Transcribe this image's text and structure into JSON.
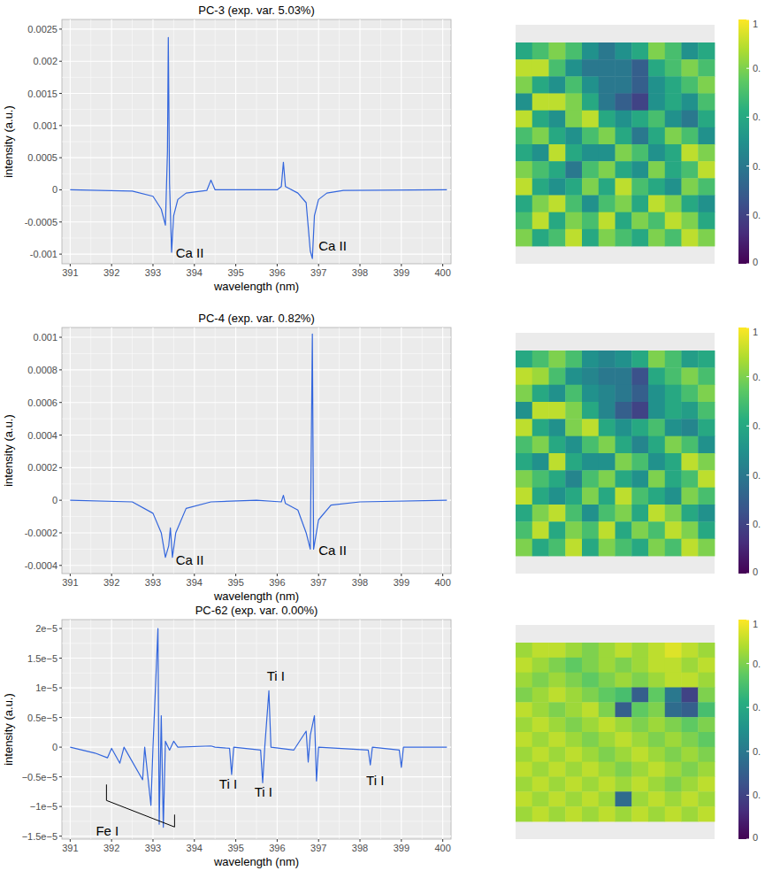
{
  "chart_data": [
    {
      "type": "line",
      "title": "PC-3 (exp. var. 5.03%)",
      "x_label": "wavelength (nm)",
      "y_label": "intensity (a.u.)",
      "color": "#3366dd",
      "grid": true,
      "xlim": [
        390.8,
        400.2
      ],
      "xticks": [
        391,
        392,
        393,
        394,
        395,
        396,
        397,
        398,
        399,
        400
      ],
      "ylim": [
        -0.00115,
        0.00265
      ],
      "yticks": [
        -0.001,
        -0.0005,
        0,
        0.0005,
        0.001,
        0.0015,
        0.002,
        0.0025
      ],
      "x": [
        391,
        392.5,
        393.0,
        393.2,
        393.3,
        393.35,
        393.37,
        393.4,
        393.45,
        393.5,
        393.6,
        393.8,
        394.3,
        394.4,
        394.5,
        396.0,
        396.1,
        396.15,
        396.2,
        396.5,
        396.7,
        396.8,
        396.85,
        396.9,
        397.0,
        397.2,
        397.6,
        400.1
      ],
      "values": [
        0,
        -2e-05,
        -0.0001,
        -0.0003,
        -0.00055,
        0.0006,
        0.00237,
        0.0001,
        -0.00097,
        -0.0004,
        -0.00015,
        -5e-05,
        -1e-05,
        0.00015,
        0,
        0,
        5e-05,
        0.00043,
        5e-05,
        -5e-05,
        -0.0002,
        -0.00095,
        -0.00107,
        -0.0004,
        -0.00015,
        -5e-05,
        -1e-05,
        0
      ],
      "annotations": [
        {
          "text": "Ca II",
          "x": 393.55,
          "y": -0.00098
        },
        {
          "text": "Ca II",
          "x": 397.0,
          "y": -0.00088
        }
      ]
    },
    {
      "type": "line",
      "title": "PC-4 (exp. var. 0.82%)",
      "x_label": "wavelength (nm)",
      "y_label": "intensity (a.u.)",
      "color": "#3366dd",
      "grid": true,
      "xlim": [
        390.8,
        400.2
      ],
      "xticks": [
        391,
        392,
        393,
        394,
        395,
        396,
        397,
        398,
        399,
        400
      ],
      "ylim": [
        -0.00045,
        0.00106
      ],
      "yticks": [
        -0.0004,
        -0.0002,
        0,
        0.0002,
        0.0004,
        0.0006,
        0.0008,
        0.001
      ],
      "x": [
        391,
        392.5,
        393.0,
        393.2,
        393.3,
        393.38,
        393.42,
        393.47,
        393.55,
        393.8,
        394.4,
        395.5,
        396.1,
        396.15,
        396.2,
        396.5,
        396.7,
        396.8,
        396.85,
        396.88,
        397.0,
        397.3,
        398.0,
        400.1
      ],
      "values": [
        0,
        -1e-05,
        -8e-05,
        -0.0002,
        -0.00035,
        -0.00028,
        -0.00017,
        -0.00035,
        -0.0002,
        -5e-05,
        -1e-05,
        0,
        -1e-05,
        3e-05,
        -2e-05,
        -6e-05,
        -0.0002,
        -0.0003,
        0.00102,
        -0.0003,
        -0.00012,
        -3e-05,
        -1e-05,
        0
      ],
      "annotations": [
        {
          "text": "Ca II",
          "x": 393.55,
          "y": -0.00037
        },
        {
          "text": "Ca II",
          "x": 397.0,
          "y": -0.00031
        }
      ]
    },
    {
      "type": "line",
      "title": "PC-62 (exp. var. 0.00%)",
      "x_label": "wavelength (nm)",
      "y_label": "intensity (a.u.)",
      "color": "#3366dd",
      "grid": true,
      "xlim": [
        390.8,
        400.2
      ],
      "xticks": [
        391,
        392,
        393,
        394,
        395,
        396,
        397,
        398,
        399,
        400
      ],
      "ylim": [
        -1.55e-05,
        2.15e-05
      ],
      "yticks": [
        {
          "value": -1.5e-05,
          "label": "−1.5e−5"
        },
        {
          "value": -1e-05,
          "label": "−1e−5"
        },
        {
          "value": -5e-06,
          "label": "−0.5e−5"
        },
        0,
        {
          "value": 5e-06,
          "label": "0.5e−5"
        },
        {
          "value": 1e-05,
          "label": "1e−5"
        },
        {
          "value": 1.5e-05,
          "label": "1.5e−5"
        },
        {
          "value": 2e-05,
          "label": "2e−5"
        }
      ],
      "x": [
        391,
        391.6,
        391.9,
        392.0,
        392.2,
        392.3,
        392.75,
        392.8,
        392.95,
        393.0,
        393.12,
        393.15,
        393.2,
        393.25,
        393.3,
        393.4,
        393.5,
        393.6,
        394.4,
        394.5,
        394.85,
        394.9,
        394.95,
        395.6,
        395.65,
        395.7,
        395.8,
        395.85,
        396.4,
        396.7,
        396.75,
        396.8,
        396.9,
        396.95,
        397.0,
        398.2,
        398.25,
        398.3,
        398.95,
        399.0,
        399.05,
        400.1
      ],
      "values": [
        0,
        -1e-06,
        -1.8e-06,
        -2e-07,
        -2.7e-06,
        0,
        -5.5e-06,
        0,
        -9.8e-06,
        0,
        2e-05,
        -1.3e-05,
        5.3e-06,
        -1.35e-05,
        1e-06,
        -5e-07,
        1e-06,
        0,
        2e-07,
        0,
        -2e-07,
        -4.6e-06,
        0,
        -5e-07,
        -6e-06,
        0,
        9.5e-06,
        0,
        -5e-07,
        2.7e-06,
        -2.5e-06,
        2e-06,
        5.3e-06,
        -5.7e-06,
        0,
        -5e-07,
        -3e-06,
        0,
        -5e-07,
        -3.4e-06,
        0,
        0
      ],
      "annotations": [
        {
          "text": "Ti I",
          "x": 395.75,
          "y": 1.2e-05
        },
        {
          "text": "Ti I",
          "x": 394.6,
          "y": -6.3e-06
        },
        {
          "text": "Ti I",
          "x": 395.45,
          "y": -7.6e-06
        },
        {
          "text": "Ti I",
          "x": 398.15,
          "y": -5.6e-06
        },
        {
          "text": "Fe I",
          "x": 391.62,
          "y": -1.42e-05
        }
      ]
    },
    {
      "type": "heatmap",
      "colorbar_range": [
        0,
        1
      ],
      "colorbar_ticks": [
        0,
        {
          "value": 0.2,
          "label": "0."
        },
        {
          "value": 0.4,
          "label": "0."
        },
        {
          "value": 0.6,
          "label": "0."
        },
        {
          "value": 0.8,
          "label": "0."
        },
        1
      ],
      "values": [
        [
          0.6,
          0.7,
          0.8,
          0.7,
          0.5,
          0.4,
          0.5,
          0.6,
          0.8,
          0.7,
          0.5,
          0.6
        ],
        [
          0.9,
          0.9,
          0.7,
          0.5,
          0.4,
          0.4,
          0.4,
          0.3,
          0.6,
          0.7,
          0.8,
          0.7
        ],
        [
          0.8,
          0.6,
          0.5,
          0.7,
          0.5,
          0.4,
          0.4,
          0.3,
          0.5,
          0.6,
          0.7,
          0.8
        ],
        [
          0.5,
          0.9,
          0.9,
          0.8,
          0.6,
          0.4,
          0.3,
          0.2,
          0.5,
          0.6,
          0.5,
          0.7
        ],
        [
          0.9,
          0.6,
          0.5,
          0.8,
          0.9,
          0.6,
          0.5,
          0.6,
          0.7,
          0.5,
          0.4,
          0.6
        ],
        [
          0.7,
          0.8,
          0.6,
          0.5,
          0.7,
          0.8,
          0.6,
          0.4,
          0.6,
          0.8,
          0.7,
          0.5
        ],
        [
          0.6,
          0.5,
          0.9,
          0.6,
          0.5,
          0.5,
          0.8,
          0.7,
          0.5,
          0.6,
          0.9,
          0.8
        ],
        [
          0.8,
          0.7,
          0.6,
          0.4,
          0.7,
          0.8,
          0.6,
          0.5,
          0.8,
          0.6,
          0.7,
          0.9
        ],
        [
          0.9,
          0.6,
          0.5,
          0.6,
          0.8,
          0.6,
          0.9,
          0.7,
          0.6,
          0.5,
          0.8,
          0.7
        ],
        [
          0.6,
          0.8,
          0.9,
          0.7,
          0.5,
          0.7,
          0.8,
          0.6,
          0.9,
          0.8,
          0.6,
          0.5
        ],
        [
          0.7,
          0.9,
          0.6,
          0.8,
          0.7,
          0.9,
          0.6,
          0.8,
          0.7,
          0.9,
          0.8,
          0.6
        ],
        [
          0.8,
          0.6,
          0.7,
          0.9,
          0.6,
          0.8,
          0.7,
          0.6,
          0.8,
          0.7,
          0.9,
          0.8
        ]
      ]
    },
    {
      "type": "heatmap",
      "colorbar_range": [
        0,
        1
      ],
      "colorbar_ticks": [
        0,
        {
          "value": 0.2,
          "label": "0."
        },
        {
          "value": 0.4,
          "label": "0."
        },
        {
          "value": 0.6,
          "label": "0."
        },
        {
          "value": 0.8,
          "label": "0."
        },
        1
      ],
      "values": [
        [
          0.6,
          0.7,
          0.8,
          0.7,
          0.5,
          0.45,
          0.5,
          0.6,
          0.8,
          0.7,
          0.55,
          0.6
        ],
        [
          0.9,
          0.85,
          0.7,
          0.5,
          0.45,
          0.4,
          0.4,
          0.25,
          0.6,
          0.7,
          0.8,
          0.7
        ],
        [
          0.8,
          0.6,
          0.5,
          0.7,
          0.5,
          0.45,
          0.4,
          0.3,
          0.5,
          0.6,
          0.7,
          0.8
        ],
        [
          0.5,
          0.9,
          0.9,
          0.8,
          0.6,
          0.45,
          0.3,
          0.2,
          0.5,
          0.6,
          0.55,
          0.7
        ],
        [
          0.9,
          0.6,
          0.5,
          0.8,
          0.9,
          0.6,
          0.5,
          0.6,
          0.7,
          0.5,
          0.45,
          0.6
        ],
        [
          0.7,
          0.8,
          0.6,
          0.5,
          0.7,
          0.8,
          0.6,
          0.45,
          0.6,
          0.8,
          0.7,
          0.5
        ],
        [
          0.6,
          0.5,
          0.9,
          0.6,
          0.5,
          0.5,
          0.8,
          0.7,
          0.5,
          0.6,
          0.9,
          0.8
        ],
        [
          0.8,
          0.7,
          0.6,
          0.45,
          0.7,
          0.8,
          0.6,
          0.5,
          0.8,
          0.6,
          0.7,
          0.9
        ],
        [
          0.9,
          0.6,
          0.5,
          0.6,
          0.8,
          0.6,
          0.9,
          0.7,
          0.6,
          0.5,
          0.8,
          0.7
        ],
        [
          0.6,
          0.8,
          0.9,
          0.7,
          0.5,
          0.7,
          0.8,
          0.6,
          0.9,
          0.8,
          0.6,
          0.5
        ],
        [
          0.7,
          0.9,
          0.6,
          0.8,
          0.7,
          0.9,
          0.6,
          0.8,
          0.7,
          0.9,
          0.8,
          0.6
        ],
        [
          0.8,
          0.6,
          0.7,
          0.9,
          0.6,
          0.8,
          0.7,
          0.6,
          0.8,
          0.7,
          0.9,
          0.8
        ]
      ]
    },
    {
      "type": "heatmap",
      "colorbar_range": [
        0,
        1
      ],
      "colorbar_ticks": [
        0,
        {
          "value": 0.2,
          "label": "0."
        },
        {
          "value": 0.4,
          "label": "0."
        },
        {
          "value": 0.6,
          "label": "0."
        },
        {
          "value": 0.8,
          "label": "0."
        },
        1
      ],
      "values": [
        [
          0.85,
          0.9,
          0.9,
          0.85,
          0.8,
          0.85,
          0.9,
          0.85,
          0.9,
          0.95,
          0.9,
          0.85
        ],
        [
          0.9,
          0.85,
          0.8,
          0.75,
          0.8,
          0.85,
          0.8,
          0.85,
          0.9,
          0.9,
          0.85,
          0.9
        ],
        [
          0.85,
          0.8,
          0.85,
          0.8,
          0.75,
          0.8,
          0.85,
          0.8,
          0.85,
          0.9,
          0.9,
          0.85
        ],
        [
          0.8,
          0.85,
          0.9,
          0.85,
          0.8,
          0.75,
          0.7,
          0.3,
          0.75,
          0.4,
          0.2,
          0.8
        ],
        [
          0.9,
          0.85,
          0.8,
          0.85,
          0.9,
          0.8,
          0.3,
          0.75,
          0.8,
          0.35,
          0.3,
          0.7
        ],
        [
          0.85,
          0.9,
          0.85,
          0.8,
          0.85,
          0.9,
          0.85,
          0.8,
          0.85,
          0.8,
          0.75,
          0.8
        ],
        [
          0.9,
          0.85,
          0.9,
          0.85,
          0.8,
          0.85,
          0.9,
          0.85,
          0.8,
          0.85,
          0.8,
          0.75
        ],
        [
          0.85,
          0.9,
          0.85,
          0.9,
          0.85,
          0.8,
          0.85,
          0.9,
          0.85,
          0.8,
          0.85,
          0.8
        ],
        [
          0.9,
          0.85,
          0.9,
          0.85,
          0.9,
          0.85,
          0.8,
          0.85,
          0.9,
          0.85,
          0.8,
          0.85
        ],
        [
          0.85,
          0.9,
          0.85,
          0.9,
          0.85,
          0.9,
          0.85,
          0.9,
          0.85,
          0.8,
          0.85,
          0.9
        ],
        [
          0.9,
          0.85,
          0.9,
          0.85,
          0.9,
          0.85,
          0.35,
          0.85,
          0.9,
          0.85,
          0.9,
          0.85
        ],
        [
          0.85,
          0.9,
          0.85,
          0.9,
          0.85,
          0.9,
          0.85,
          0.9,
          0.85,
          0.9,
          0.85,
          0.9
        ]
      ]
    }
  ]
}
